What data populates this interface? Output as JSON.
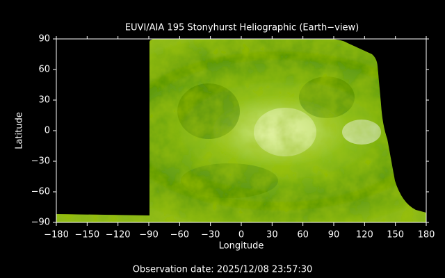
{
  "chart_data": {
    "type": "image",
    "title": "EUVI/AIA 195 Stonyhurst Heliographic (Earth−view)",
    "xlabel": "Longitude",
    "ylabel": "Latitude",
    "xlim": [
      -180,
      180
    ],
    "ylim": [
      -90,
      90
    ],
    "xticks": [
      {
        "value": -180,
        "label": "−180"
      },
      {
        "value": -150,
        "label": "−150"
      },
      {
        "value": -120,
        "label": "−120"
      },
      {
        "value": -90,
        "label": "−90"
      },
      {
        "value": -60,
        "label": "−60"
      },
      {
        "value": -30,
        "label": "−30"
      },
      0,
      30,
      60,
      90,
      120,
      150,
      180
    ],
    "yticks": [
      {
        "value": -90,
        "label": "−90"
      },
      {
        "value": -60,
        "label": "−60"
      },
      {
        "value": -30,
        "label": "−30"
      },
      0,
      30,
      60,
      90
    ],
    "grid": false
  },
  "footer": "Observation date: 2025/12/08 23:57:30"
}
